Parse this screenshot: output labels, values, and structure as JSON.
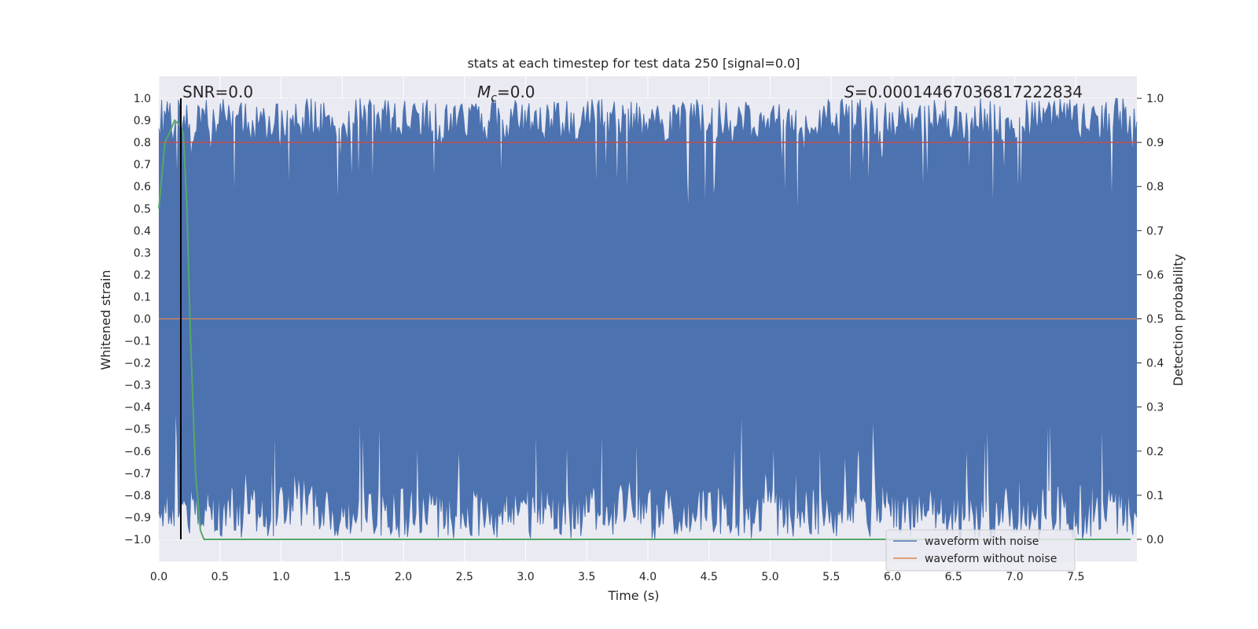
{
  "chart_data": {
    "type": "line",
    "title": "stats at each timestep for test data 250 [signal=0.0]",
    "xlabel": "Time (s)",
    "ylabel_left": "Whitened strain",
    "ylabel_right": "Detection probability",
    "xlim": [
      0.0,
      8.0
    ],
    "ylim_left": [
      -1.1,
      1.1
    ],
    "ylim_right": [
      -0.05,
      1.05
    ],
    "x_ticks": [
      "0.0",
      "0.5",
      "1.0",
      "1.5",
      "2.0",
      "2.5",
      "3.0",
      "3.5",
      "4.0",
      "4.5",
      "5.0",
      "5.5",
      "6.0",
      "6.5",
      "7.0",
      "7.5"
    ],
    "y_left_ticks": [
      "1.0",
      "0.9",
      "0.8",
      "0.7",
      "0.6",
      "0.5",
      "0.4",
      "0.3",
      "0.2",
      "0.1",
      "0.0",
      "−0.1",
      "−0.2",
      "−0.3",
      "−0.4",
      "−0.5",
      "−0.6",
      "−0.7",
      "−0.8",
      "−0.9",
      "−1.0"
    ],
    "y_right_ticks": [
      "1.0",
      "0.9",
      "0.8",
      "0.7",
      "0.6",
      "0.5",
      "0.4",
      "0.3",
      "0.2",
      "0.1",
      "0.0"
    ],
    "grid": true,
    "legend_position": "lower-right",
    "annotations": {
      "snr": "SNR=0.0",
      "mc_symbol": "M",
      "mc_sub": "c",
      "mc_value": "=0.0",
      "s_symbol": "S",
      "s_value": "=0.00014467036817222834"
    },
    "series": [
      {
        "name": "waveform with noise",
        "color": "#4c72b0",
        "axis": "left",
        "description_range": [
          -1.0,
          1.0
        ]
      },
      {
        "name": "waveform without noise",
        "color": "#dd8452",
        "axis": "left",
        "y": 0.0
      },
      {
        "color": "#55a868",
        "axis": "right",
        "x": [
          0.0,
          0.05,
          0.1,
          0.13,
          0.17,
          0.2,
          0.23,
          0.26,
          0.3,
          0.34,
          0.37,
          0.5,
          1.0,
          2.0,
          3.0,
          4.0,
          5.0,
          6.0,
          7.0,
          7.95
        ],
        "y": [
          0.75,
          0.9,
          0.93,
          0.95,
          0.94,
          0.92,
          0.75,
          0.45,
          0.15,
          0.02,
          0.0,
          0.0,
          0.0,
          0.0,
          0.0,
          0.0,
          0.0,
          0.0,
          0.0,
          0.0
        ]
      },
      {
        "color": "#c44e52",
        "axis": "right",
        "y": 0.9
      },
      {
        "color": "#000000",
        "axis": "left",
        "vertical_x": 0.18
      }
    ]
  }
}
